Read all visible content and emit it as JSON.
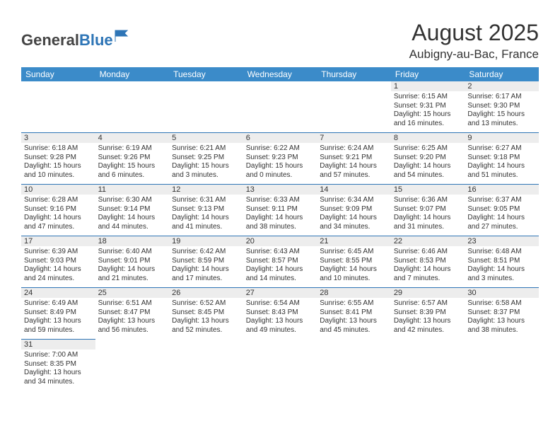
{
  "logo": {
    "part1": "General",
    "part2": "Blue"
  },
  "title": "August 2025",
  "location": "Aubigny-au-Bac, France",
  "colors": {
    "header_bg": "#3b8bc9",
    "border": "#2e75b6",
    "daynum_bg": "#ededed",
    "text": "#333333"
  },
  "day_headers": [
    "Sunday",
    "Monday",
    "Tuesday",
    "Wednesday",
    "Thursday",
    "Friday",
    "Saturday"
  ],
  "weeks": [
    [
      null,
      null,
      null,
      null,
      null,
      {
        "n": "1",
        "sr": "6:15 AM",
        "ss": "9:31 PM",
        "dl": "15 hours and 16 minutes."
      },
      {
        "n": "2",
        "sr": "6:17 AM",
        "ss": "9:30 PM",
        "dl": "15 hours and 13 minutes."
      }
    ],
    [
      {
        "n": "3",
        "sr": "6:18 AM",
        "ss": "9:28 PM",
        "dl": "15 hours and 10 minutes."
      },
      {
        "n": "4",
        "sr": "6:19 AM",
        "ss": "9:26 PM",
        "dl": "15 hours and 6 minutes."
      },
      {
        "n": "5",
        "sr": "6:21 AM",
        "ss": "9:25 PM",
        "dl": "15 hours and 3 minutes."
      },
      {
        "n": "6",
        "sr": "6:22 AM",
        "ss": "9:23 PM",
        "dl": "15 hours and 0 minutes."
      },
      {
        "n": "7",
        "sr": "6:24 AM",
        "ss": "9:21 PM",
        "dl": "14 hours and 57 minutes."
      },
      {
        "n": "8",
        "sr": "6:25 AM",
        "ss": "9:20 PM",
        "dl": "14 hours and 54 minutes."
      },
      {
        "n": "9",
        "sr": "6:27 AM",
        "ss": "9:18 PM",
        "dl": "14 hours and 51 minutes."
      }
    ],
    [
      {
        "n": "10",
        "sr": "6:28 AM",
        "ss": "9:16 PM",
        "dl": "14 hours and 47 minutes."
      },
      {
        "n": "11",
        "sr": "6:30 AM",
        "ss": "9:14 PM",
        "dl": "14 hours and 44 minutes."
      },
      {
        "n": "12",
        "sr": "6:31 AM",
        "ss": "9:13 PM",
        "dl": "14 hours and 41 minutes."
      },
      {
        "n": "13",
        "sr": "6:33 AM",
        "ss": "9:11 PM",
        "dl": "14 hours and 38 minutes."
      },
      {
        "n": "14",
        "sr": "6:34 AM",
        "ss": "9:09 PM",
        "dl": "14 hours and 34 minutes."
      },
      {
        "n": "15",
        "sr": "6:36 AM",
        "ss": "9:07 PM",
        "dl": "14 hours and 31 minutes."
      },
      {
        "n": "16",
        "sr": "6:37 AM",
        "ss": "9:05 PM",
        "dl": "14 hours and 27 minutes."
      }
    ],
    [
      {
        "n": "17",
        "sr": "6:39 AM",
        "ss": "9:03 PM",
        "dl": "14 hours and 24 minutes."
      },
      {
        "n": "18",
        "sr": "6:40 AM",
        "ss": "9:01 PM",
        "dl": "14 hours and 21 minutes."
      },
      {
        "n": "19",
        "sr": "6:42 AM",
        "ss": "8:59 PM",
        "dl": "14 hours and 17 minutes."
      },
      {
        "n": "20",
        "sr": "6:43 AM",
        "ss": "8:57 PM",
        "dl": "14 hours and 14 minutes."
      },
      {
        "n": "21",
        "sr": "6:45 AM",
        "ss": "8:55 PM",
        "dl": "14 hours and 10 minutes."
      },
      {
        "n": "22",
        "sr": "6:46 AM",
        "ss": "8:53 PM",
        "dl": "14 hours and 7 minutes."
      },
      {
        "n": "23",
        "sr": "6:48 AM",
        "ss": "8:51 PM",
        "dl": "14 hours and 3 minutes."
      }
    ],
    [
      {
        "n": "24",
        "sr": "6:49 AM",
        "ss": "8:49 PM",
        "dl": "13 hours and 59 minutes."
      },
      {
        "n": "25",
        "sr": "6:51 AM",
        "ss": "8:47 PM",
        "dl": "13 hours and 56 minutes."
      },
      {
        "n": "26",
        "sr": "6:52 AM",
        "ss": "8:45 PM",
        "dl": "13 hours and 52 minutes."
      },
      {
        "n": "27",
        "sr": "6:54 AM",
        "ss": "8:43 PM",
        "dl": "13 hours and 49 minutes."
      },
      {
        "n": "28",
        "sr": "6:55 AM",
        "ss": "8:41 PM",
        "dl": "13 hours and 45 minutes."
      },
      {
        "n": "29",
        "sr": "6:57 AM",
        "ss": "8:39 PM",
        "dl": "13 hours and 42 minutes."
      },
      {
        "n": "30",
        "sr": "6:58 AM",
        "ss": "8:37 PM",
        "dl": "13 hours and 38 minutes."
      }
    ],
    [
      {
        "n": "31",
        "sr": "7:00 AM",
        "ss": "8:35 PM",
        "dl": "13 hours and 34 minutes."
      },
      null,
      null,
      null,
      null,
      null,
      null
    ]
  ],
  "labels": {
    "sunrise": "Sunrise: ",
    "sunset": "Sunset: ",
    "daylight": "Daylight: "
  }
}
